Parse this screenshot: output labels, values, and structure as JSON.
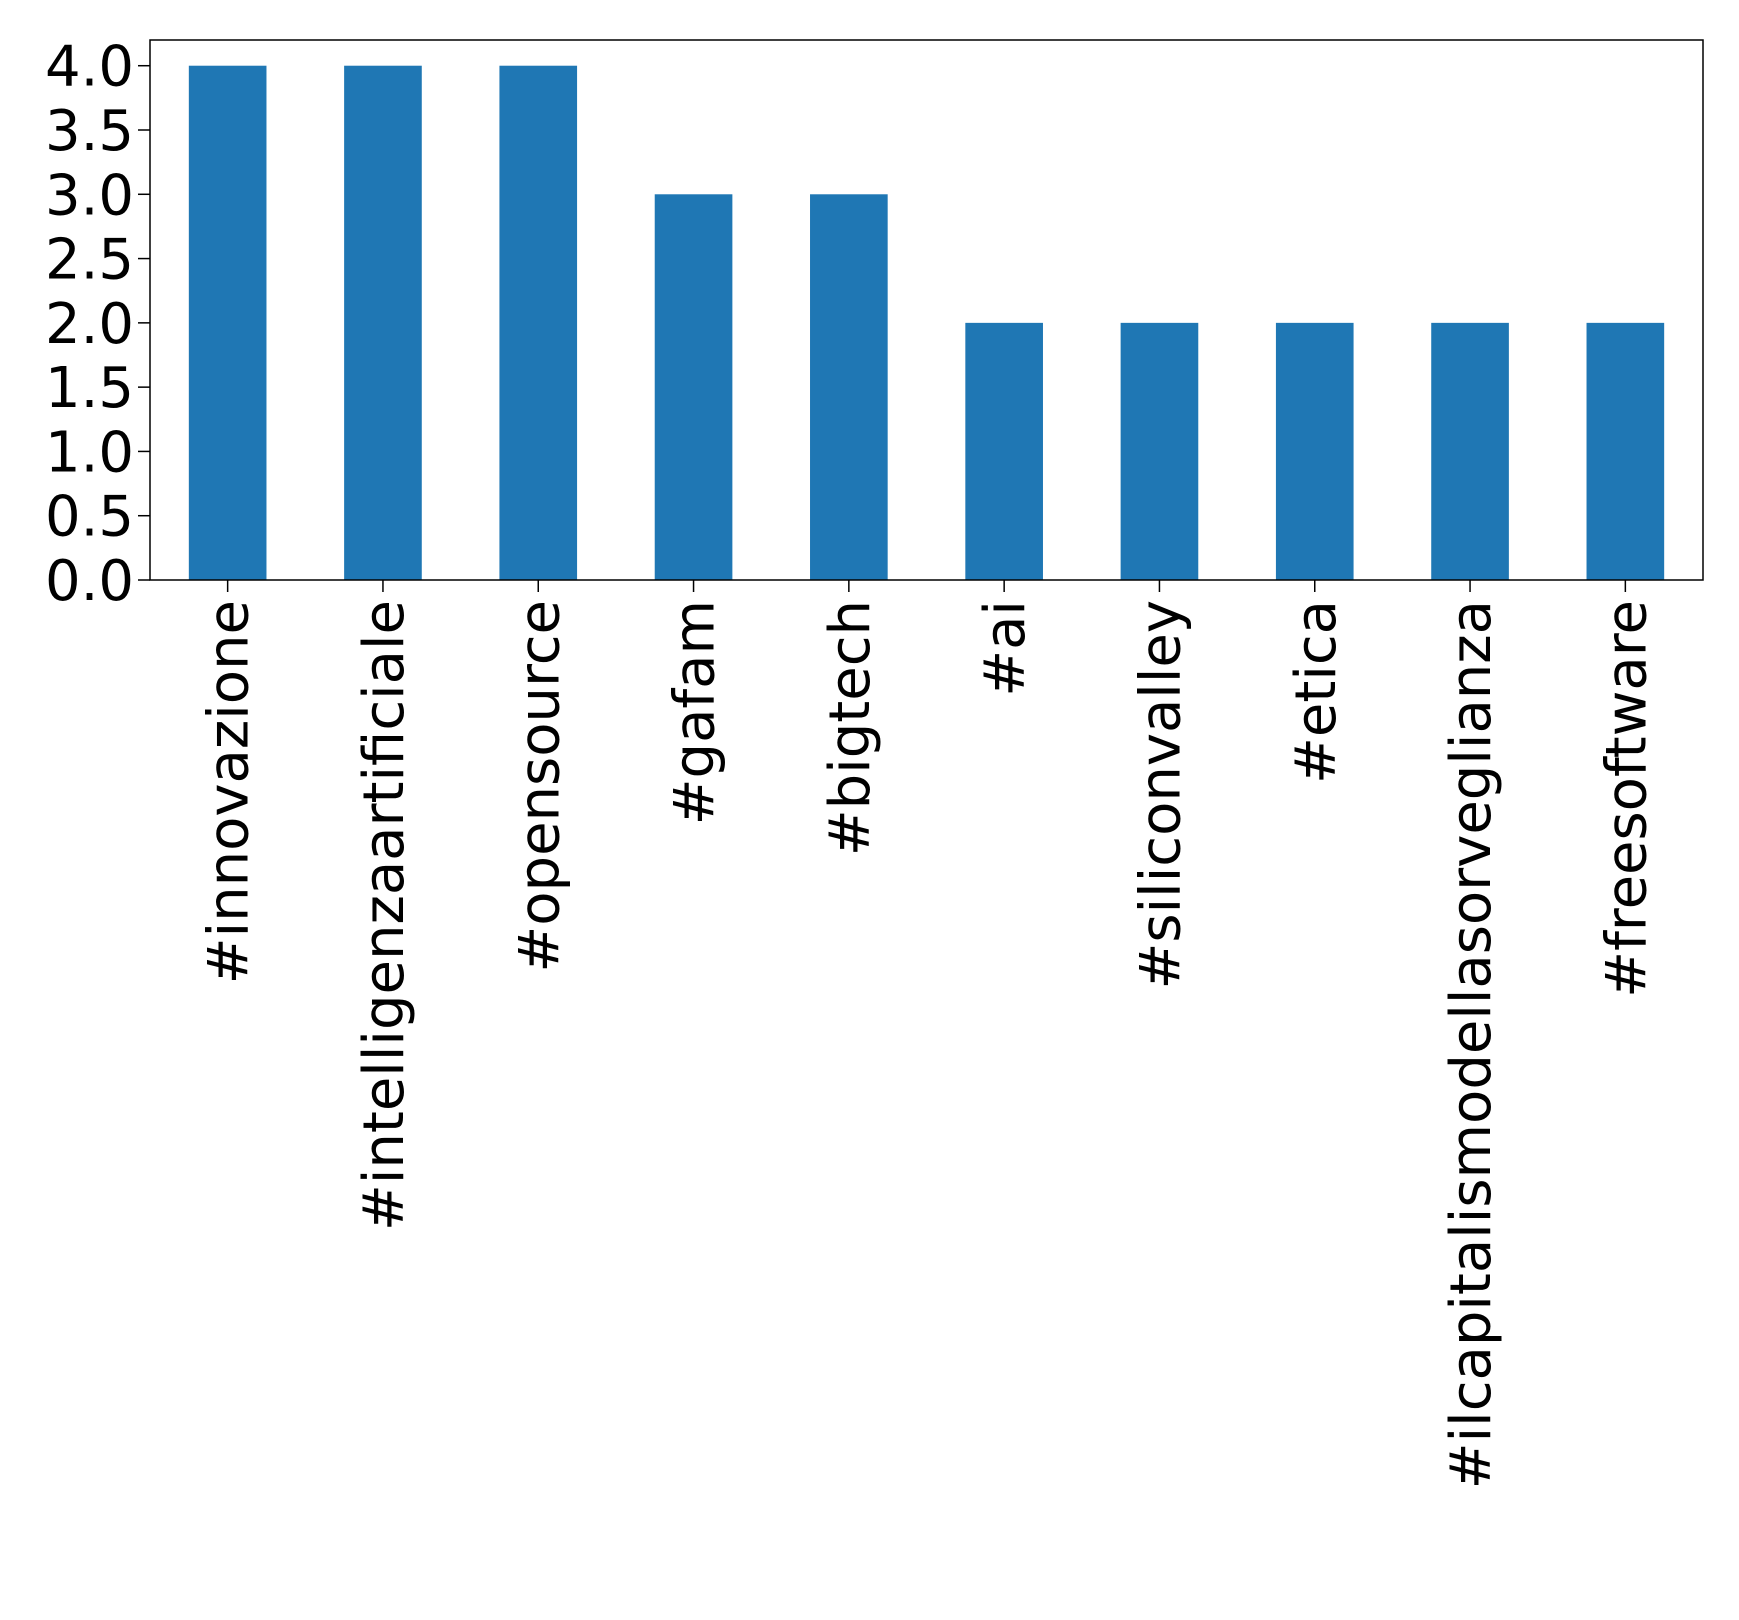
{
  "chart_data": {
    "type": "bar",
    "title": "",
    "xlabel": "",
    "ylabel": "",
    "categories": [
      "#innovazione",
      "#intelligenzaartificiale",
      "#opensource",
      "#gafam",
      "#bigtech",
      "#ai",
      "#siliconvalley",
      "#etica",
      "#ilcapitalismodellasorveglianza",
      "#freesoftware"
    ],
    "values": [
      4,
      4,
      4,
      3,
      3,
      2,
      2,
      2,
      2,
      2
    ],
    "ylim": [
      0,
      4.2
    ],
    "yticks": [
      "0.0",
      "0.5",
      "1.0",
      "1.5",
      "2.0",
      "2.5",
      "3.0",
      "3.5",
      "4.0"
    ],
    "x_tick_rotation": "vertical",
    "grid": false,
    "legend": "none",
    "bar_color": "#1f77b4"
  }
}
